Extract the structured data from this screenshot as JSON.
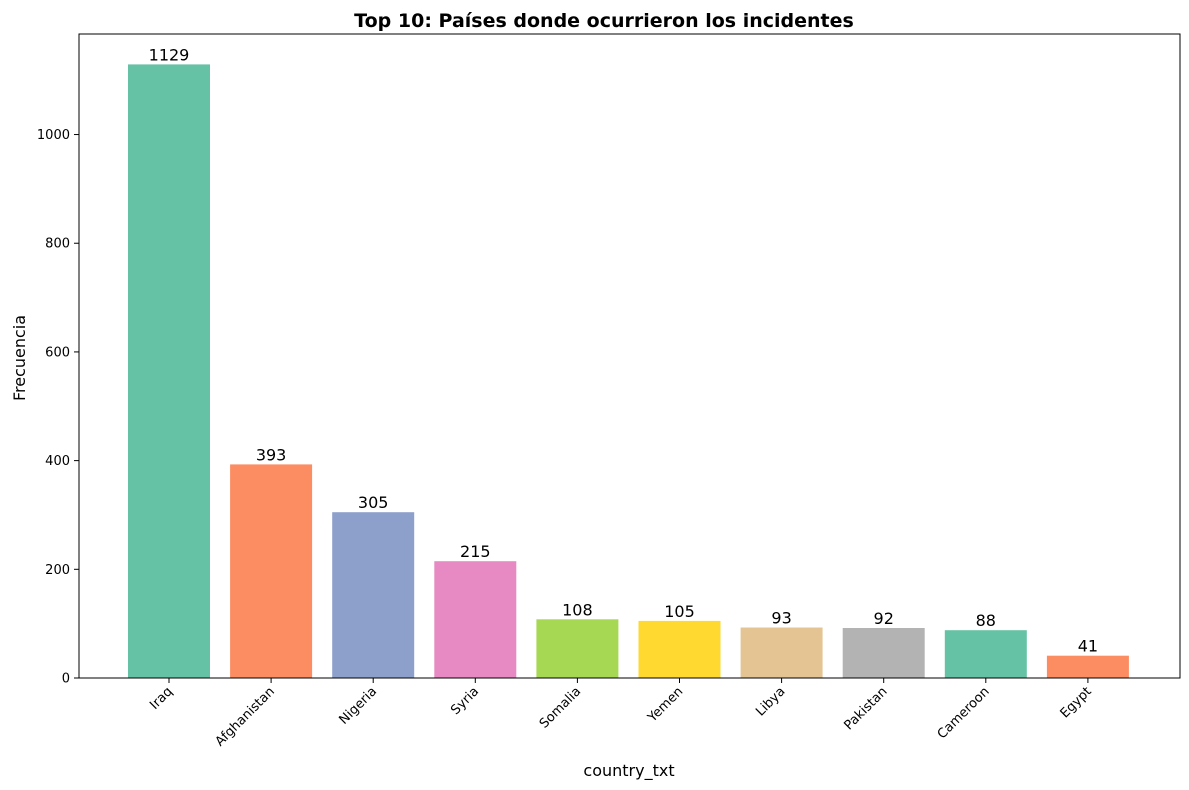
{
  "chart_data": {
    "type": "bar",
    "title": "Top 10: Países donde ocurrieron los incidentes",
    "xlabel": "country_txt",
    "ylabel": "Frecuencia",
    "categories": [
      "Iraq",
      "Afghanistan",
      "Nigeria",
      "Syria",
      "Somalia",
      "Yemen",
      "Libya",
      "Pakistan",
      "Cameroon",
      "Egypt"
    ],
    "values": [
      1129,
      393,
      305,
      215,
      108,
      105,
      93,
      92,
      88,
      41
    ],
    "colors": [
      "#66c2a5",
      "#fc8d62",
      "#8da0cb",
      "#e78ac3",
      "#a6d854",
      "#ffd92f",
      "#e5c494",
      "#b3b3b3",
      "#66c2a5",
      "#fc8d62"
    ],
    "yticks": [
      0,
      200,
      400,
      600,
      800,
      1000
    ],
    "ylim": [
      0,
      1185
    ],
    "grid": false,
    "legend": "none"
  }
}
